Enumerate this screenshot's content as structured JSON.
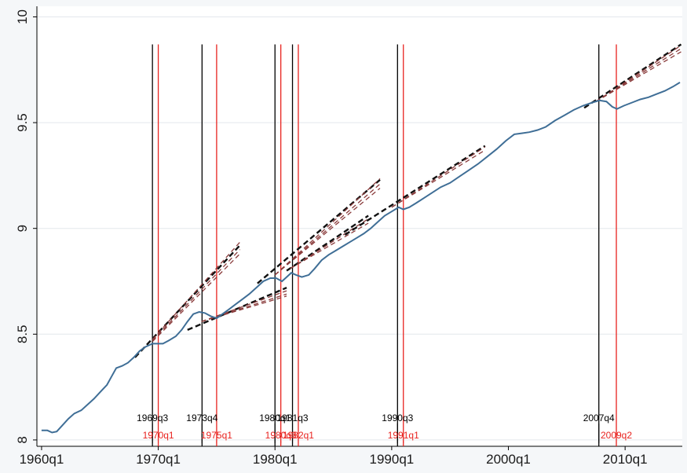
{
  "chart_data": {
    "type": "line",
    "title": "",
    "xlabel": "",
    "ylabel": "",
    "xlim": [
      1959.6,
      2014.9
    ],
    "ylim": [
      7.97,
      10.05
    ],
    "grid": "horizontal",
    "x_ticks": [
      {
        "value": 1960,
        "label": "1960q1"
      },
      {
        "value": 1970,
        "label": "1970q1"
      },
      {
        "value": 1980,
        "label": "1980q1"
      },
      {
        "value": 1990,
        "label": "1990q1"
      },
      {
        "value": 2000,
        "label": "2000q1"
      },
      {
        "value": 2010,
        "label": "2010q1"
      }
    ],
    "y_ticks": [
      {
        "value": 8,
        "label": "8"
      },
      {
        "value": 8.5,
        "label": "8.5"
      },
      {
        "value": 9,
        "label": "9"
      },
      {
        "value": 9.5,
        "label": "9.5"
      },
      {
        "value": 10,
        "label": "10"
      }
    ],
    "series": [
      {
        "color": "#3f6e96",
        "points": [
          [
            1960.0,
            8.045
          ],
          [
            1960.5,
            8.045
          ],
          [
            1960.9,
            8.035
          ],
          [
            1961.3,
            8.04
          ],
          [
            1961.8,
            8.07
          ],
          [
            1962.3,
            8.1
          ],
          [
            1962.8,
            8.125
          ],
          [
            1963.4,
            8.14
          ],
          [
            1963.9,
            8.165
          ],
          [
            1964.5,
            8.195
          ],
          [
            1965.0,
            8.225
          ],
          [
            1965.6,
            8.26
          ],
          [
            1966.0,
            8.3
          ],
          [
            1966.4,
            8.34
          ],
          [
            1966.9,
            8.35
          ],
          [
            1967.4,
            8.365
          ],
          [
            1967.9,
            8.39
          ],
          [
            1968.4,
            8.42
          ],
          [
            1968.9,
            8.44
          ],
          [
            1969.5,
            8.455
          ],
          [
            1970.0,
            8.455
          ],
          [
            1970.4,
            8.455
          ],
          [
            1970.9,
            8.47
          ],
          [
            1971.5,
            8.49
          ],
          [
            1972.0,
            8.52
          ],
          [
            1972.5,
            8.56
          ],
          [
            1973.0,
            8.595
          ],
          [
            1973.5,
            8.605
          ],
          [
            1974.0,
            8.6
          ],
          [
            1974.5,
            8.585
          ],
          [
            1975.0,
            8.575
          ],
          [
            1975.5,
            8.595
          ],
          [
            1976.0,
            8.615
          ],
          [
            1976.6,
            8.64
          ],
          [
            1977.2,
            8.665
          ],
          [
            1977.8,
            8.69
          ],
          [
            1978.4,
            8.72
          ],
          [
            1979.0,
            8.75
          ],
          [
            1979.6,
            8.765
          ],
          [
            1980.1,
            8.765
          ],
          [
            1980.6,
            8.75
          ],
          [
            1981.0,
            8.77
          ],
          [
            1981.4,
            8.79
          ],
          [
            1981.8,
            8.78
          ],
          [
            1982.3,
            8.77
          ],
          [
            1982.9,
            8.78
          ],
          [
            1983.4,
            8.81
          ],
          [
            1984.0,
            8.85
          ],
          [
            1984.6,
            8.875
          ],
          [
            1985.2,
            8.895
          ],
          [
            1985.8,
            8.915
          ],
          [
            1986.4,
            8.935
          ],
          [
            1987.0,
            8.955
          ],
          [
            1987.6,
            8.975
          ],
          [
            1988.2,
            9.0
          ],
          [
            1988.8,
            9.03
          ],
          [
            1989.4,
            9.06
          ],
          [
            1990.0,
            9.08
          ],
          [
            1990.6,
            9.1
          ],
          [
            1991.0,
            9.09
          ],
          [
            1991.5,
            9.1
          ],
          [
            1992.1,
            9.12
          ],
          [
            1992.8,
            9.145
          ],
          [
            1993.5,
            9.17
          ],
          [
            1994.2,
            9.195
          ],
          [
            1995.0,
            9.215
          ],
          [
            1995.8,
            9.245
          ],
          [
            1996.6,
            9.275
          ],
          [
            1997.4,
            9.305
          ],
          [
            1998.2,
            9.34
          ],
          [
            1999.0,
            9.375
          ],
          [
            1999.8,
            9.415
          ],
          [
            2000.5,
            9.445
          ],
          [
            2001.2,
            9.45
          ],
          [
            2001.8,
            9.455
          ],
          [
            2002.5,
            9.465
          ],
          [
            2003.2,
            9.48
          ],
          [
            2004.0,
            9.51
          ],
          [
            2004.8,
            9.535
          ],
          [
            2005.6,
            9.56
          ],
          [
            2006.4,
            9.58
          ],
          [
            2007.2,
            9.595
          ],
          [
            2007.8,
            9.605
          ],
          [
            2008.4,
            9.6
          ],
          [
            2008.9,
            9.575
          ],
          [
            2009.3,
            9.565
          ],
          [
            2009.9,
            9.58
          ],
          [
            2010.6,
            9.595
          ],
          [
            2011.3,
            9.61
          ],
          [
            2012.0,
            9.62
          ],
          [
            2012.7,
            9.635
          ],
          [
            2013.4,
            9.65
          ],
          [
            2014.1,
            9.67
          ],
          [
            2014.7,
            9.69
          ]
        ]
      }
    ],
    "trend_lines": [
      {
        "style": "black-dashed",
        "points": [
          [
            1968.0,
            8.39
          ],
          [
            1977.0,
            8.92
          ]
        ]
      },
      {
        "style": "red-dashed",
        "points": [
          [
            1969.5,
            8.475
          ],
          [
            1977.0,
            8.935
          ]
        ]
      },
      {
        "style": "red-dashed",
        "points": [
          [
            1969.5,
            8.47
          ],
          [
            1977.0,
            8.9
          ]
        ]
      },
      {
        "style": "red-dashed",
        "points": [
          [
            1969.5,
            8.465
          ],
          [
            1977.0,
            8.88
          ]
        ]
      },
      {
        "style": "black-dashed",
        "points": [
          [
            1972.5,
            8.52
          ],
          [
            1981.0,
            8.72
          ]
        ]
      },
      {
        "style": "red-dashed",
        "points": [
          [
            1973.7,
            8.56
          ],
          [
            1981.0,
            8.705
          ]
        ]
      },
      {
        "style": "red-dashed",
        "points": [
          [
            1973.7,
            8.56
          ],
          [
            1981.0,
            8.69
          ]
        ]
      },
      {
        "style": "red-dashed",
        "points": [
          [
            1973.7,
            8.56
          ],
          [
            1981.0,
            8.68
          ]
        ]
      },
      {
        "style": "black-dashed",
        "points": [
          [
            1978.5,
            8.74
          ],
          [
            1989.0,
            9.23
          ]
        ]
      },
      {
        "style": "red-dashed",
        "points": [
          [
            1980.0,
            8.78
          ],
          [
            1989.0,
            9.235
          ]
        ]
      },
      {
        "style": "red-dashed",
        "points": [
          [
            1980.0,
            8.78
          ],
          [
            1989.0,
            9.21
          ]
        ]
      },
      {
        "style": "red-dashed",
        "points": [
          [
            1980.0,
            8.78
          ],
          [
            1989.0,
            9.19
          ]
        ]
      },
      {
        "style": "black-dashed",
        "points": [
          [
            1981.0,
            8.8
          ],
          [
            1988.0,
            9.06
          ]
        ]
      },
      {
        "style": "red-dashed",
        "points": [
          [
            1981.3,
            8.81
          ],
          [
            1988.0,
            9.045
          ]
        ]
      },
      {
        "style": "red-dashed",
        "points": [
          [
            1981.3,
            8.81
          ],
          [
            1988.0,
            9.025
          ]
        ]
      },
      {
        "style": "black-dashed",
        "points": [
          [
            1986.0,
            8.97
          ],
          [
            1998.0,
            9.39
          ]
        ]
      },
      {
        "style": "red-dashed",
        "points": [
          [
            1990.0,
            9.1
          ],
          [
            1998.0,
            9.385
          ]
        ]
      },
      {
        "style": "red-dashed",
        "points": [
          [
            1990.0,
            9.1
          ],
          [
            1998.0,
            9.37
          ]
        ]
      },
      {
        "style": "black-dashed",
        "points": [
          [
            2006.5,
            9.57
          ],
          [
            2014.8,
            9.87
          ]
        ]
      },
      {
        "style": "red-dashed",
        "points": [
          [
            2007.5,
            9.6
          ],
          [
            2014.8,
            9.865
          ]
        ]
      },
      {
        "style": "red-dashed",
        "points": [
          [
            2007.5,
            9.6
          ],
          [
            2014.8,
            9.85
          ]
        ]
      },
      {
        "style": "red-dashed",
        "points": [
          [
            2007.5,
            9.6
          ],
          [
            2014.8,
            9.835
          ]
        ]
      }
    ],
    "vertical_markers": [
      {
        "x": 1969.5,
        "color": "#000000",
        "label": "1969q3",
        "label_row": "upper"
      },
      {
        "x": 1970.0,
        "color": "#e8231f",
        "label": "1970q1",
        "label_row": "lower"
      },
      {
        "x": 1973.75,
        "color": "#000000",
        "label": "1973q4",
        "label_row": "upper"
      },
      {
        "x": 1975.0,
        "color": "#e8231f",
        "label": "1975q1",
        "label_row": "lower"
      },
      {
        "x": 1980.0,
        "color": "#000000",
        "label": "1980q1",
        "label_row": "upper"
      },
      {
        "x": 1980.5,
        "color": "#e8231f",
        "label": "1980q3",
        "label_row": "lower"
      },
      {
        "x": 1981.5,
        "color": "#000000",
        "label": "1981q3",
        "label_row": "upper"
      },
      {
        "x": 1982.0,
        "color": "#e8231f",
        "label": "1982q1",
        "label_row": "lower"
      },
      {
        "x": 1990.5,
        "color": "#000000",
        "label": "1990q3",
        "label_row": "upper"
      },
      {
        "x": 1991.0,
        "color": "#e8231f",
        "label": "1991q1",
        "label_row": "lower"
      },
      {
        "x": 2007.75,
        "color": "#000000",
        "label": "2007q4",
        "label_row": "upper"
      },
      {
        "x": 2009.25,
        "color": "#e8231f",
        "label": "2009q2",
        "label_row": "lower"
      }
    ],
    "marker_line_top": 9.87
  }
}
